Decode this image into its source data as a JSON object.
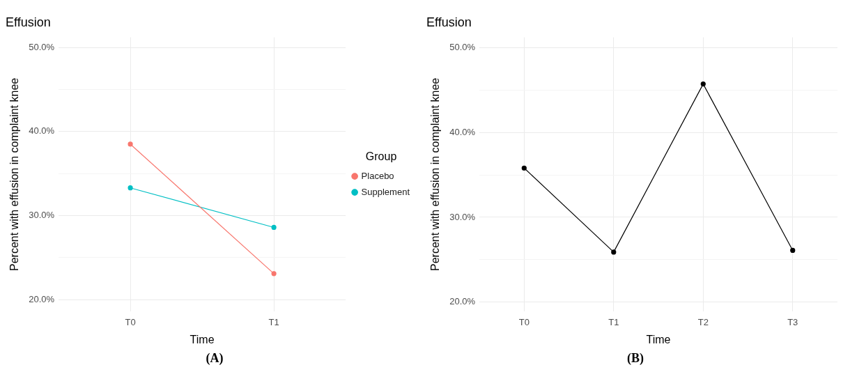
{
  "chart_data": [
    {
      "type": "line",
      "title": "Effusion",
      "xlabel": "Time",
      "ylabel": "Percent with effusion in complaint knee",
      "legend_title": "Group",
      "categories": [
        "T0",
        "T1"
      ],
      "series": [
        {
          "name": "Placebo",
          "color": "#f8766d",
          "values": [
            38.5,
            23.1
          ]
        },
        {
          "name": "Supplement",
          "color": "#00bfc4",
          "values": [
            33.3,
            28.6
          ]
        }
      ],
      "ylim": [
        18.6,
        51.2
      ],
      "yticks": [
        {
          "value": 20,
          "label": "20.0%"
        },
        {
          "value": 25,
          "label": null
        },
        {
          "value": 30,
          "label": "30.0%"
        },
        {
          "value": 35,
          "label": null
        },
        {
          "value": 40,
          "label": "40.0%"
        },
        {
          "value": 45,
          "label": null
        },
        {
          "value": 50,
          "label": "50.0%"
        }
      ],
      "grid": true,
      "legend": "right",
      "marker": "circle",
      "annotations": [
        "(A)"
      ]
    },
    {
      "type": "line",
      "title": "Effusion",
      "xlabel": "Time",
      "ylabel": "Percent with effusion in complaint knee",
      "categories": [
        "T0",
        "T1",
        "T2",
        "T3"
      ],
      "series": [
        {
          "color": "#000000",
          "values": [
            35.8,
            25.9,
            45.7,
            26.1
          ]
        }
      ],
      "ylim": [
        18.9,
        51.2
      ],
      "yticks": [
        {
          "value": 20,
          "label": "20.0%"
        },
        {
          "value": 25,
          "label": null
        },
        {
          "value": 30,
          "label": "30.0%"
        },
        {
          "value": 35,
          "label": null
        },
        {
          "value": 40,
          "label": "40.0%"
        },
        {
          "value": 45,
          "label": null
        },
        {
          "value": 50,
          "label": "50.0%"
        }
      ],
      "grid": true,
      "legend": false,
      "marker": "circle",
      "annotations": [
        "(B)"
      ]
    }
  ]
}
